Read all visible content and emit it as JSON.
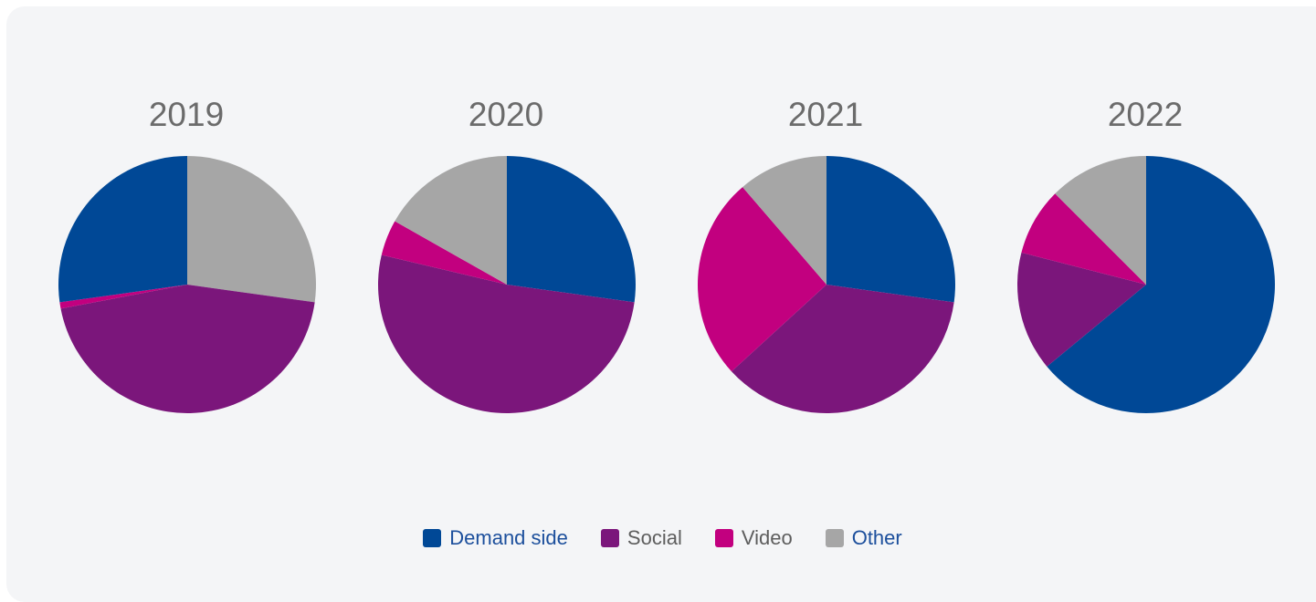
{
  "chart_data": {
    "type": "pie",
    "series_names": [
      "Demand side",
      "Social",
      "Video",
      "Other"
    ],
    "colors": {
      "Demand side": "#004896",
      "Social": "#7b167b",
      "Video": "#c2007f",
      "Other": "#a6a6a6"
    },
    "legend_text_colors": {
      "Demand side": "#1c4f9c",
      "Social": "#5d5d5d",
      "Video": "#5d5d5d",
      "Other": "#1c4f9c"
    },
    "pies": [
      {
        "title": "2019",
        "slices": [
          {
            "label": "Other",
            "value": 27.2
          },
          {
            "label": "Social",
            "value": 44.8
          },
          {
            "label": "Video",
            "value": 0.8
          },
          {
            "label": "Demand side",
            "value": 27.2
          }
        ]
      },
      {
        "title": "2020",
        "slices": [
          {
            "label": "Demand side",
            "value": 27.2
          },
          {
            "label": "Social",
            "value": 51.5
          },
          {
            "label": "Video",
            "value": 4.5
          },
          {
            "label": "Other",
            "value": 16.8
          }
        ]
      },
      {
        "title": "2021",
        "slices": [
          {
            "label": "Demand side",
            "value": 27.2
          },
          {
            "label": "Social",
            "value": 36.0
          },
          {
            "label": "Video",
            "value": 25.5
          },
          {
            "label": "Other",
            "value": 11.3
          }
        ]
      },
      {
        "title": "2022",
        "slices": [
          {
            "label": "Demand side",
            "value": 64.0
          },
          {
            "label": "Social",
            "value": 15.0
          },
          {
            "label": "Video",
            "value": 8.5
          },
          {
            "label": "Other",
            "value": 12.5
          }
        ]
      }
    ],
    "legend_position": "bottom-center"
  }
}
